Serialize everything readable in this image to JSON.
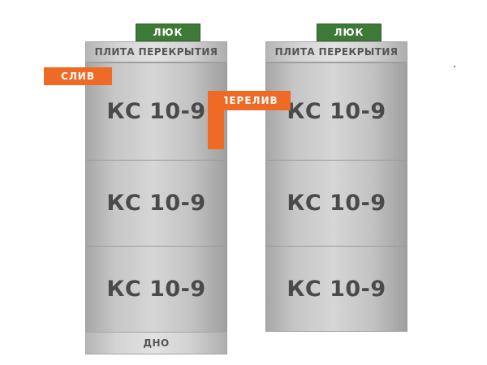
{
  "hatch_label": "ЛЮК",
  "slab_label": "ПЛИТА ПЕРЕКРЫТИЯ",
  "ring_label": "КС 10-9",
  "bottom_label": "ДНО",
  "drain_label": "СЛИВ",
  "overflow_label": "ПЕРЕЛИВ",
  "colors": {
    "hatch": "#3d7a37",
    "pipe": "#ef6a24",
    "concrete": "#c8c8c8",
    "text": "#4a4a4a"
  }
}
